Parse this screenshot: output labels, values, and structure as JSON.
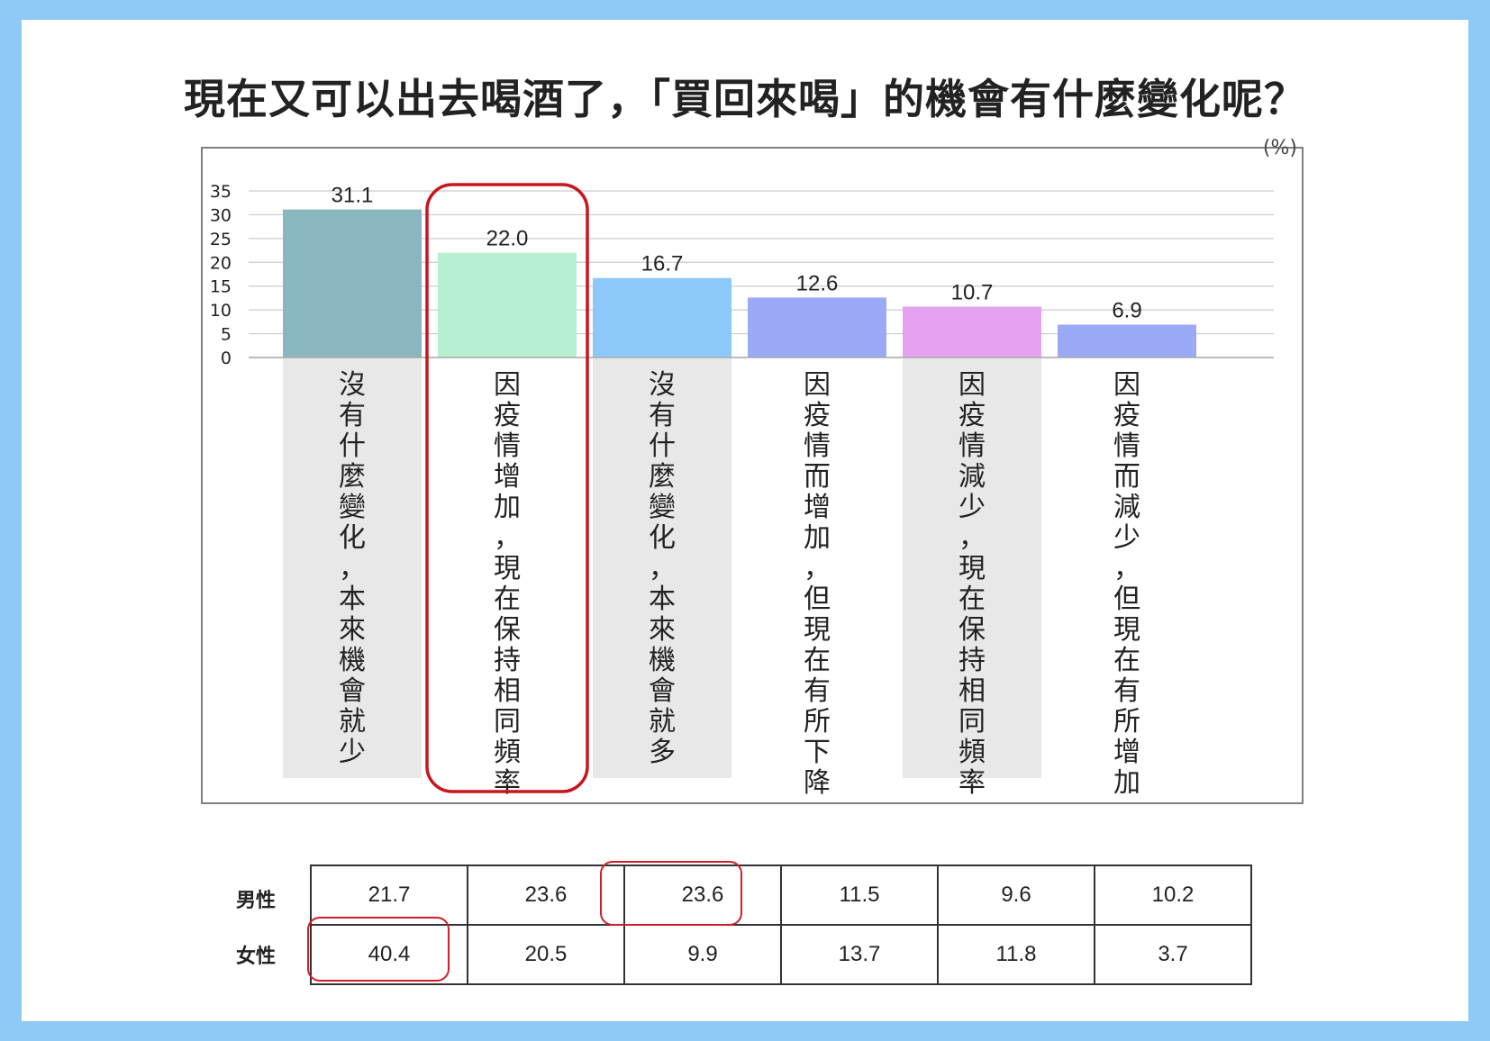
{
  "title": "現在又可以出去喝酒了，「買回來喝」的機會有什麼變化呢？",
  "unit": "(%)",
  "chart_data": {
    "type": "bar",
    "categories": [
      "沒有什麼變化，本來機會就少",
      "因疫情增加，現在保持相同頻率",
      "沒有什麼變化，本來機會就多",
      "因疫情而增加，但現在有所下降",
      "因疫情減少，現在保持相同頻率",
      "因疫情而減少，但現在有所增加"
    ],
    "values": [
      31.1,
      22.0,
      16.7,
      12.6,
      10.7,
      6.9
    ],
    "value_labels": [
      "31.1",
      "22.0",
      "16.7",
      "12.6",
      "10.7",
      "6.9"
    ],
    "colors": [
      "#8ab7bf",
      "#b6f0d0",
      "#8cc8fa",
      "#9aaaf6",
      "#e4a2f0",
      "#9aaaf6"
    ],
    "yticks": [
      "35",
      "30",
      "25",
      "20",
      "15",
      "10",
      "5",
      "0"
    ],
    "ylim": [
      0,
      35
    ],
    "grid": true,
    "highlight_category_index": 1,
    "highlight_color": "#c8151f"
  },
  "table": {
    "rows": [
      {
        "label": "男性",
        "values": [
          "21.7",
          "23.6",
          "23.6",
          "11.5",
          "9.6",
          "10.2"
        ]
      },
      {
        "label": "女性",
        "values": [
          "40.4",
          "20.5",
          "9.9",
          "13.7",
          "11.8",
          "3.7"
        ]
      }
    ],
    "highlight_cells": [
      {
        "row": 0,
        "col": 2
      },
      {
        "row": 1,
        "col": 0
      }
    ],
    "highlight_color": "#d11d2a"
  }
}
